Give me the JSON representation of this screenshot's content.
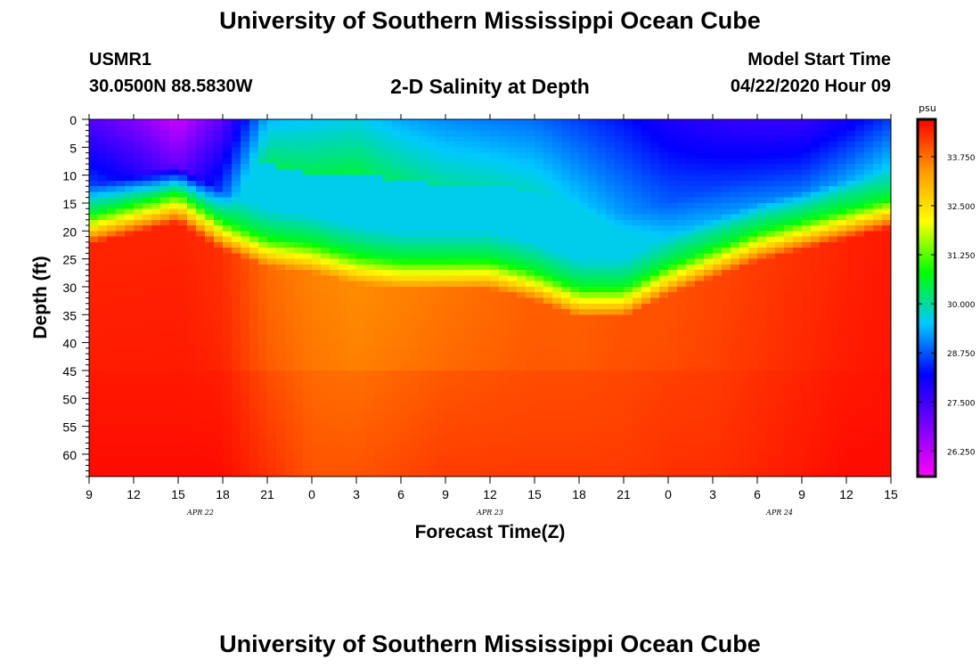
{
  "header": {
    "title": "University of Southern Mississippi Ocean Cube",
    "station_id": "USMR1",
    "station_coords": "30.0500N 88.5830W",
    "plot_title": "2-D Salinity at Depth",
    "model_start_label": "Model Start Time",
    "model_start_value": "04/22/2020 Hour 09"
  },
  "footer": {
    "title": "University of Southern Mississippi Ocean Cube"
  },
  "chart_data": {
    "type": "heatmap",
    "title": "2-D Salinity at Depth",
    "xlabel": "Forecast Time(Z)",
    "ylabel": "Depth (ft)",
    "x_ticks": [
      "9",
      "12",
      "15",
      "18",
      "21",
      "0",
      "3",
      "6",
      "9",
      "12",
      "15",
      "18",
      "21",
      "0",
      "3",
      "6",
      "9",
      "12",
      "15"
    ],
    "x_range_hours": [
      0,
      54
    ],
    "day_labels": [
      {
        "label": "APR 22",
        "hour": 7.5
      },
      {
        "label": "APR 23",
        "hour": 27
      },
      {
        "label": "APR 24",
        "hour": 46.5
      }
    ],
    "y_ticks": [
      0,
      5,
      10,
      15,
      20,
      25,
      30,
      35,
      40,
      45,
      50,
      55,
      60
    ],
    "ylim": [
      0,
      64
    ],
    "colorbar": {
      "unit": "psu",
      "min": 25.6,
      "max": 34.7,
      "ticks": [
        26.25,
        27.5,
        28.75,
        30.0,
        31.25,
        32.5,
        33.75
      ],
      "tick_labels": [
        "26.250",
        "27.500",
        "28.750",
        "30.000",
        "31.250",
        "32.500",
        "33.750"
      ],
      "colors": [
        "#ff00ff",
        "#7700ff",
        "#0000ff",
        "#00c8ff",
        "#00ff00",
        "#ffff00",
        "#ff9900",
        "#ff0000"
      ]
    },
    "halocline": {
      "hours": [
        0,
        3,
        6,
        9,
        12,
        15,
        18,
        21,
        24,
        27,
        30,
        33,
        36,
        39,
        42,
        45,
        48,
        51,
        54
      ],
      "depth_ft": [
        17,
        15,
        13,
        18,
        21,
        22,
        24,
        25,
        25,
        25,
        27,
        30,
        30,
        26,
        23,
        20,
        18,
        16,
        14
      ]
    },
    "surface_salinity": {
      "hours": [
        0,
        3,
        6,
        9,
        12,
        15,
        18,
        21,
        24,
        27,
        30,
        33,
        36,
        39,
        42,
        45,
        48,
        51,
        54
      ],
      "psu": [
        27.3,
        26.8,
        26.1,
        27.2,
        29.4,
        29.5,
        29.6,
        29.3,
        29.1,
        29.0,
        28.9,
        28.6,
        28.3,
        27.9,
        27.7,
        27.6,
        27.6,
        28.0,
        28.6
      ]
    },
    "surface_layer_depth_ft": [
      8,
      8,
      8,
      8,
      8,
      10,
      10,
      11,
      12,
      12,
      13,
      15,
      17,
      15,
      12,
      10,
      9,
      8,
      8
    ],
    "deep_salinity": {
      "hours": [
        0,
        3,
        6,
        9,
        12,
        15,
        18,
        21,
        24,
        27,
        30,
        33,
        36,
        39,
        42,
        45,
        48,
        51,
        54
      ],
      "mid_psu": [
        34.4,
        34.4,
        34.4,
        34.3,
        33.8,
        33.6,
        33.5,
        33.6,
        33.7,
        33.8,
        33.9,
        33.9,
        34.0,
        34.0,
        34.1,
        34.2,
        34.3,
        34.4,
        34.5
      ],
      "bottom_psu": [
        34.6,
        34.6,
        34.6,
        34.6,
        34.3,
        34.0,
        34.0,
        34.1,
        34.2,
        34.2,
        34.2,
        34.2,
        34.2,
        34.3,
        34.3,
        34.4,
        34.5,
        34.6,
        34.6
      ]
    }
  }
}
